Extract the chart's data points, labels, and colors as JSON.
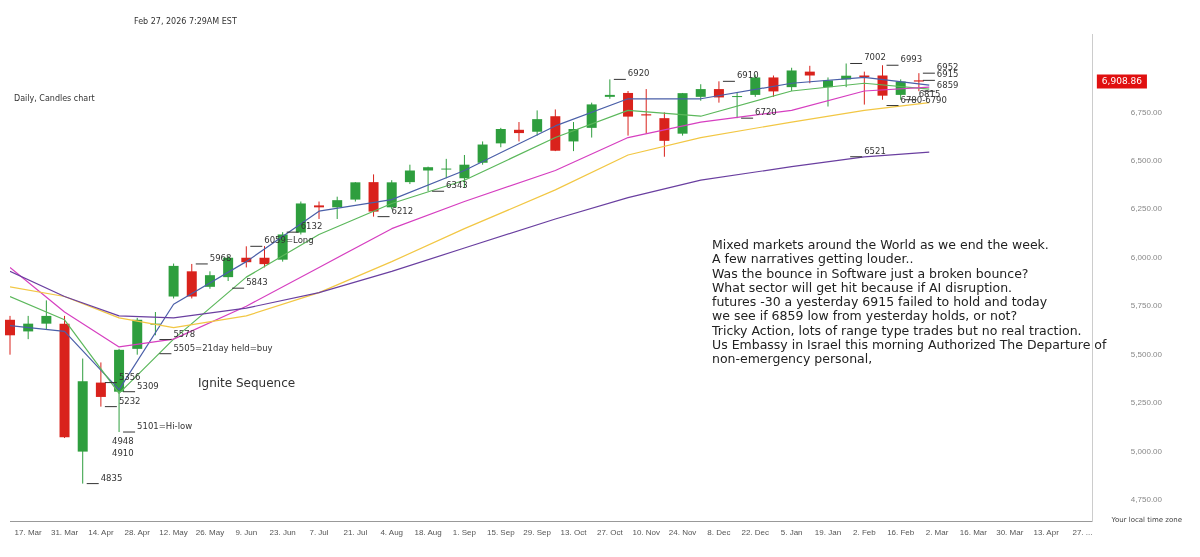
{
  "chart_data": {
    "type": "candlestick",
    "title": "Daily, Candles chart",
    "subtitle": "Feb 27, 2026 7:29AM EST",
    "legend": false,
    "x": [
      "2025-03-10",
      "2025-03-17",
      "2025-03-24",
      "2025-03-31",
      "2025-04-07",
      "2025-04-14",
      "2025-04-21",
      "2025-04-28",
      "2025-05-05",
      "2025-05-12",
      "2025-05-19",
      "2025-05-26",
      "2025-06-02",
      "2025-06-09",
      "2025-06-16",
      "2025-06-23",
      "2025-06-30",
      "2025-07-07",
      "2025-07-14",
      "2025-07-21",
      "2025-07-28",
      "2025-08-04",
      "2025-08-11",
      "2025-08-18",
      "2025-08-25",
      "2025-09-01",
      "2025-09-08",
      "2025-09-15",
      "2025-09-22",
      "2025-09-29",
      "2025-10-06",
      "2025-10-13",
      "2025-10-20",
      "2025-10-27",
      "2025-11-03",
      "2025-11-10",
      "2025-11-17",
      "2025-11-24",
      "2025-12-01",
      "2025-12-08",
      "2025-12-15",
      "2025-12-22",
      "2025-12-29",
      "2026-01-05",
      "2026-01-12",
      "2026-01-19",
      "2026-01-26",
      "2026-02-02",
      "2026-02-09",
      "2026-02-16",
      "2026-02-23"
    ],
    "ohlc": [
      [
        5680,
        5700,
        5500,
        5600
      ],
      [
        5620,
        5700,
        5580,
        5660
      ],
      [
        5660,
        5780,
        5630,
        5700
      ],
      [
        5660,
        5700,
        5070,
        5074
      ],
      [
        5000,
        5480,
        4835,
        5363
      ],
      [
        5356,
        5460,
        5232,
        5282
      ],
      [
        5309,
        5530,
        5101,
        5525
      ],
      [
        5530,
        5690,
        5500,
        5680
      ],
      [
        5660,
        5720,
        5600,
        5660
      ],
      [
        5800,
        5970,
        5790,
        5958
      ],
      [
        5930,
        5968,
        5790,
        5800
      ],
      [
        5850,
        5930,
        5840,
        5910
      ],
      [
        5900,
        6010,
        5880,
        6000
      ],
      [
        6000,
        6059,
        5950,
        5977
      ],
      [
        6000,
        6060,
        5950,
        5967
      ],
      [
        5990,
        6132,
        5980,
        6120
      ],
      [
        6130,
        6290,
        6120,
        6280
      ],
      [
        6270,
        6290,
        6200,
        6260
      ],
      [
        6260,
        6315,
        6200,
        6297
      ],
      [
        6300,
        6390,
        6290,
        6389
      ],
      [
        6390,
        6430,
        6212,
        6238
      ],
      [
        6260,
        6400,
        6250,
        6389
      ],
      [
        6390,
        6480,
        6380,
        6450
      ],
      [
        6450,
        6470,
        6343,
        6467
      ],
      [
        6460,
        6510,
        6410,
        6460
      ],
      [
        6410,
        6530,
        6360,
        6480
      ],
      [
        6490,
        6600,
        6480,
        6584
      ],
      [
        6590,
        6670,
        6570,
        6664
      ],
      [
        6660,
        6700,
        6600,
        6643
      ],
      [
        6650,
        6760,
        6630,
        6715
      ],
      [
        6730,
        6765,
        6550,
        6552
      ],
      [
        6600,
        6700,
        6550,
        6664
      ],
      [
        6670,
        6800,
        6620,
        6791
      ],
      [
        6830,
        6920,
        6820,
        6840
      ],
      [
        6850,
        6860,
        6630,
        6728
      ],
      [
        6740,
        6870,
        6640,
        6734
      ],
      [
        6720,
        6750,
        6521,
        6603
      ],
      [
        6640,
        6850,
        6630,
        6849
      ],
      [
        6830,
        6895,
        6810,
        6870
      ],
      [
        6870,
        6910,
        6800,
        6827
      ],
      [
        6830,
        6850,
        6720,
        6834
      ],
      [
        6840,
        6945,
        6830,
        6930
      ],
      [
        6930,
        6940,
        6830,
        6858
      ],
      [
        6880,
        6980,
        6860,
        6966
      ],
      [
        6960,
        6990,
        6900,
        6940
      ],
      [
        6880,
        6930,
        6780,
        6915
      ],
      [
        6920,
        7002,
        6880,
        6939
      ],
      [
        6940,
        6960,
        6790,
        6932
      ],
      [
        6940,
        6993,
        6815,
        6836
      ],
      [
        6840,
        6920,
        6815,
        6909
      ],
      [
        6915,
        6952,
        6859,
        6908.86
      ]
    ],
    "series": [
      {
        "type": "line",
        "color": "#6a3fa0",
        "x": [
          "2025-03-10",
          "2025-03-31",
          "2025-04-21",
          "2025-05-12",
          "2025-06-09",
          "2025-07-07",
          "2025-08-04",
          "2025-09-01",
          "2025-10-06",
          "2025-11-03",
          "2025-12-01",
          "2026-01-05",
          "2026-02-02",
          "2026-02-27"
        ],
        "values": [
          5930,
          5800,
          5700,
          5690,
          5740,
          5820,
          5930,
          6050,
          6200,
          6310,
          6400,
          6470,
          6520,
          6545
        ]
      },
      {
        "type": "line",
        "color": "#f2c744",
        "x": [
          "2025-03-10",
          "2025-03-31",
          "2025-04-21",
          "2025-05-12",
          "2025-06-09",
          "2025-07-07",
          "2025-08-04",
          "2025-09-01",
          "2025-10-06",
          "2025-11-03",
          "2025-12-01",
          "2026-01-05",
          "2026-02-02",
          "2026-02-27"
        ],
        "values": [
          5850,
          5800,
          5690,
          5640,
          5700,
          5820,
          5980,
          6150,
          6350,
          6530,
          6620,
          6700,
          6760,
          6800
        ]
      },
      {
        "type": "line",
        "color": "#d63fc0",
        "x": [
          "2025-03-10",
          "2025-03-31",
          "2025-04-21",
          "2025-05-12",
          "2025-06-09",
          "2025-07-07",
          "2025-08-04",
          "2025-09-01",
          "2025-10-06",
          "2025-11-03",
          "2025-12-01",
          "2026-01-05",
          "2026-02-02",
          "2026-02-27"
        ],
        "values": [
          5950,
          5720,
          5540,
          5580,
          5750,
          5950,
          6150,
          6290,
          6450,
          6620,
          6700,
          6760,
          6860,
          6880
        ]
      },
      {
        "type": "line",
        "color": "#5cb85c",
        "x": [
          "2025-03-10",
          "2025-03-31",
          "2025-04-21",
          "2025-05-12",
          "2025-06-09",
          "2025-07-07",
          "2025-08-04",
          "2025-09-01",
          "2025-10-06",
          "2025-11-03",
          "2025-12-01",
          "2026-01-05",
          "2026-02-02",
          "2026-02-27"
        ],
        "values": [
          5800,
          5680,
          5300,
          5580,
          5900,
          6120,
          6280,
          6400,
          6620,
          6760,
          6730,
          6860,
          6900,
          6870
        ]
      },
      {
        "type": "line",
        "color": "#4a5fa8",
        "x": [
          "2025-03-10",
          "2025-03-31",
          "2025-04-21",
          "2025-05-12",
          "2025-06-09",
          "2025-07-07",
          "2025-08-04",
          "2025-09-01",
          "2025-10-06",
          "2025-11-03",
          "2025-12-01",
          "2026-01-05",
          "2026-02-02",
          "2026-02-27"
        ],
        "values": [
          5650,
          5620,
          5320,
          5760,
          5980,
          6240,
          6300,
          6450,
          6680,
          6820,
          6820,
          6900,
          6930,
          6890
        ]
      }
    ],
    "xlim": [
      "2025-03-10",
      "2026-05-01"
    ],
    "xticks": [
      {
        "value": "2025-03-17",
        "label": "17. Mar"
      },
      {
        "value": "2025-03-31",
        "label": "31. Mar"
      },
      {
        "value": "2025-04-14",
        "label": "14. Apr"
      },
      {
        "value": "2025-04-28",
        "label": "28. Apr"
      },
      {
        "value": "2025-05-12",
        "label": "12. May"
      },
      {
        "value": "2025-05-26",
        "label": "26. May"
      },
      {
        "value": "2025-06-09",
        "label": "9. Jun"
      },
      {
        "value": "2025-06-23",
        "label": "23. Jun"
      },
      {
        "value": "2025-07-07",
        "label": "7. Jul"
      },
      {
        "value": "2025-07-21",
        "label": "21. Jul"
      },
      {
        "value": "2025-08-04",
        "label": "4. Aug"
      },
      {
        "value": "2025-08-18",
        "label": "18. Aug"
      },
      {
        "value": "2025-09-01",
        "label": "1. Sep"
      },
      {
        "value": "2025-09-15",
        "label": "15. Sep"
      },
      {
        "value": "2025-09-29",
        "label": "29. Sep"
      },
      {
        "value": "2025-10-13",
        "label": "13. Oct"
      },
      {
        "value": "2025-10-27",
        "label": "27. Oct"
      },
      {
        "value": "2025-11-10",
        "label": "10. Nov"
      },
      {
        "value": "2025-11-24",
        "label": "24. Nov"
      },
      {
        "value": "2025-12-08",
        "label": "8. Dec"
      },
      {
        "value": "2025-12-22",
        "label": "22. Dec"
      },
      {
        "value": "2026-01-05",
        "label": "5. Jan"
      },
      {
        "value": "2026-01-19",
        "label": "19. Jan"
      },
      {
        "value": "2026-02-02",
        "label": "2. Feb"
      },
      {
        "value": "2026-02-16",
        "label": "16. Feb"
      },
      {
        "value": "2026-03-02",
        "label": "2. Mar"
      },
      {
        "value": "2026-03-16",
        "label": "16. Mar"
      },
      {
        "value": "2026-03-30",
        "label": "30. Mar"
      },
      {
        "value": "2026-04-13",
        "label": "13. Apr"
      },
      {
        "value": "2026-04-27",
        "label": "27. ..."
      }
    ],
    "ylim": [
      4640,
      7150
    ],
    "yticks": [
      {
        "value": 4750,
        "label": "4,750.00"
      },
      {
        "value": 5000,
        "label": "5,000.00"
      },
      {
        "value": 5250,
        "label": "5,250.00"
      },
      {
        "value": 5500,
        "label": "5,500.00"
      },
      {
        "value": 5750,
        "label": "5,750.00"
      },
      {
        "value": 6000,
        "label": "6,000.00"
      },
      {
        "value": 6250,
        "label": "6,250.00"
      },
      {
        "value": 6500,
        "label": "6,500.00"
      },
      {
        "value": 6750,
        "label": "6,750.00"
      }
    ],
    "annotations": [
      "Mixed markets around the World as we end the week.\nA few narratives getting louder..\nWas the bounce in Software just a broken bounce?\nWhat sector will get hit because if AI disruption.\nfutures -30 a yesterday 6915 failed to hold and today\nwe see if 6859 low from yesterday holds, or not?\nTricky Action, lots of range type trades but no real traction.\nUs Embassy in Israel this morning Authorized The Departure of\nnon-emergency personal,",
      "Your local time zone",
      "6,908.86",
      "Ignite Sequence",
      "4948",
      "4910",
      {
        "text": "7002",
        "x": "2026-01-26",
        "y": 7002
      },
      {
        "text": "6993",
        "x": "2026-02-09",
        "y": 6993
      },
      {
        "text": "6952",
        "x": "2026-02-23",
        "y": 6952
      },
      {
        "text": "6920",
        "x": "2025-10-27",
        "y": 6920
      },
      {
        "text": "6910",
        "x": "2025-12-08",
        "y": 6910
      },
      {
        "text": "6915",
        "x": "2026-02-23",
        "y": 6915
      },
      {
        "text": "6859",
        "x": "2026-02-23",
        "y": 6859
      },
      {
        "text": "6815",
        "x": "2026-02-16",
        "y": 6815
      },
      {
        "text": "6780-6790",
        "x": "2026-02-09",
        "y": 6785
      },
      {
        "text": "6720",
        "x": "2025-12-15",
        "y": 6720
      },
      {
        "text": "6521",
        "x": "2026-01-26",
        "y": 6521
      },
      {
        "text": "6343",
        "x": "2025-08-18",
        "y": 6343
      },
      {
        "text": "6212",
        "x": "2025-07-28",
        "y": 6212
      },
      {
        "text": "6132",
        "x": "2025-06-23",
        "y": 6132
      },
      {
        "text": "6059=Long",
        "x": "2025-06-09",
        "y": 6059
      },
      {
        "text": "5968",
        "x": "2025-05-19",
        "y": 5968
      },
      {
        "text": "5843",
        "x": "2025-06-02",
        "y": 5843
      },
      {
        "text": "5578",
        "x": "2025-05-05",
        "y": 5578
      },
      {
        "text": "5505=21day held=buy",
        "x": "2025-05-05",
        "y": 5505
      },
      {
        "text": "5356",
        "x": "2025-04-14",
        "y": 5356
      },
      {
        "text": "5309",
        "x": "2025-04-21",
        "y": 5309
      },
      {
        "text": "5232",
        "x": "2025-04-14",
        "y": 5232
      },
      {
        "text": "5101=Hi-low",
        "x": "2025-04-21",
        "y": 5101
      },
      {
        "text": "4835",
        "x": "2025-04-07",
        "y": 4835
      }
    ]
  }
}
